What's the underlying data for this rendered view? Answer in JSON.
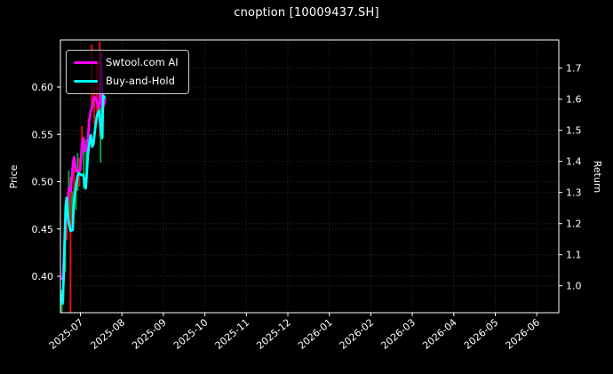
{
  "title": "cnoption [10009437.SH]",
  "axes": {
    "left_label": "Price",
    "right_label": "Return",
    "price_ticks": [
      0.4,
      0.45,
      0.5,
      0.55,
      0.6
    ],
    "return_ticks": [
      1.0,
      1.1,
      1.2,
      1.3,
      1.4,
      1.5,
      1.6,
      1.7
    ],
    "x_tick_labels": [
      "2025-07",
      "2025-08",
      "2025-09",
      "2025-10",
      "2025-11",
      "2025-12",
      "2026-01",
      "2026-02",
      "2026-03",
      "2026-04",
      "2026-05",
      "2026-06"
    ]
  },
  "legend": {
    "items": [
      {
        "label": "Swtool.com AI",
        "color": "#ff00ff"
      },
      {
        "label": "Buy-and-Hold",
        "color": "#00ffff"
      }
    ]
  },
  "colors": {
    "background": "#000000",
    "text": "#ffffff",
    "grid": "#2f2f2f",
    "spine": "#ffffff",
    "candle_red": "#e01010",
    "candle_green": "#00a33c"
  },
  "chart_data": {
    "type": "line",
    "title": "cnoption [10009437.SH]",
    "grid": "dotted",
    "legend_position": "upper left",
    "x_axis": {
      "kind": "time",
      "start_date": "2025-06-16",
      "point_x_unit": "days since start_date",
      "tick_labels": [
        "2025-07",
        "2025-08",
        "2025-09",
        "2025-10",
        "2025-11",
        "2025-12",
        "2026-01",
        "2026-02",
        "2026-03",
        "2026-04",
        "2026-05",
        "2026-06"
      ]
    },
    "price_axis": {
      "label": "Price",
      "side": "left",
      "ticks": [
        0.4,
        0.45,
        0.5,
        0.55,
        0.6
      ],
      "range": [
        0.361,
        0.65
      ]
    },
    "return_axis": {
      "label": "Return",
      "side": "right",
      "ticks": [
        1.0,
        1.1,
        1.2,
        1.3,
        1.4,
        1.5,
        1.6,
        1.7
      ],
      "range": [
        0.913,
        1.79
      ]
    },
    "series": [
      {
        "name": "Swtool.com AI",
        "color": "#ff00ff",
        "scale": "price",
        "points": [
          [
            0,
            0.398
          ],
          [
            1.9,
            0.397
          ],
          [
            2.6,
            0.41
          ],
          [
            3.9,
            0.452
          ],
          [
            5.2,
            0.47
          ],
          [
            6.5,
            0.493
          ],
          [
            7.8,
            0.49
          ],
          [
            9.7,
            0.521
          ],
          [
            10.4,
            0.526
          ],
          [
            11.8,
            0.511
          ],
          [
            13.6,
            0.512
          ],
          [
            14.9,
            0.512
          ],
          [
            16.2,
            0.54
          ],
          [
            17.3,
            0.546
          ],
          [
            18.3,
            0.532
          ],
          [
            20.0,
            0.534
          ],
          [
            21.5,
            0.565
          ],
          [
            22.6,
            0.575
          ],
          [
            23.9,
            0.58
          ],
          [
            24.9,
            0.589
          ],
          [
            25.9,
            0.589
          ],
          [
            27.2,
            0.585
          ],
          [
            28.1,
            0.578
          ],
          [
            29.1,
            0.584
          ],
          [
            30.1,
            0.636
          ],
          [
            31.0,
            0.576
          ],
          [
            32.0,
            0.58
          ],
          [
            33.0,
            0.587
          ]
        ]
      },
      {
        "name": "Buy-and-Hold",
        "color": "#00ffff",
        "scale": "price",
        "points": [
          [
            0,
            0.382
          ],
          [
            1.3,
            0.376
          ],
          [
            1.9,
            0.371
          ],
          [
            2.9,
            0.405
          ],
          [
            3.6,
            0.445
          ],
          [
            4.2,
            0.473
          ],
          [
            4.9,
            0.483
          ],
          [
            5.8,
            0.462
          ],
          [
            6.8,
            0.455
          ],
          [
            7.8,
            0.448
          ],
          [
            9.4,
            0.449
          ],
          [
            10.0,
            0.474
          ],
          [
            10.8,
            0.485
          ],
          [
            12.0,
            0.497
          ],
          [
            12.9,
            0.506
          ],
          [
            14.0,
            0.509
          ],
          [
            15.5,
            0.507
          ],
          [
            17.3,
            0.507
          ],
          [
            18.3,
            0.495
          ],
          [
            19.0,
            0.493
          ],
          [
            20.5,
            0.528
          ],
          [
            21.5,
            0.54
          ],
          [
            22.6,
            0.549
          ],
          [
            23.7,
            0.537
          ],
          [
            24.6,
            0.54
          ],
          [
            25.9,
            0.557
          ],
          [
            27.2,
            0.57
          ],
          [
            28.5,
            0.575
          ],
          [
            29.4,
            0.565
          ],
          [
            30.7,
            0.546
          ],
          [
            31.7,
            0.591
          ],
          [
            32.7,
            0.589
          ]
        ]
      }
    ],
    "candlesticks": [
      [
        0,
        "red",
        0.371,
        0.4
      ],
      [
        1.3,
        "green",
        0.36,
        0.386
      ],
      [
        2.6,
        "green",
        0.375,
        0.42
      ],
      [
        3.9,
        "green",
        0.405,
        0.46
      ],
      [
        5.2,
        "red",
        0.438,
        0.48
      ],
      [
        6.5,
        "green",
        0.458,
        0.512
      ],
      [
        7.8,
        "red",
        0.362,
        0.505
      ],
      [
        9.1,
        "green",
        0.452,
        0.49
      ],
      [
        10.4,
        "red",
        0.485,
        0.521
      ],
      [
        11.7,
        "green",
        0.47,
        0.5
      ],
      [
        13.0,
        "green",
        0.49,
        0.53
      ],
      [
        14.3,
        "red",
        0.495,
        0.525
      ],
      [
        16.2,
        "red",
        0.531,
        0.559
      ],
      [
        17.5,
        "green",
        0.493,
        0.54
      ],
      [
        19.4,
        "green",
        0.5,
        0.545
      ],
      [
        21.0,
        "red",
        0.528,
        0.566
      ],
      [
        23.3,
        "red",
        0.575,
        0.645
      ],
      [
        25.2,
        "red",
        0.56,
        0.6
      ],
      [
        27.2,
        "red",
        0.57,
        0.625
      ],
      [
        29.1,
        "red",
        0.548,
        0.648
      ],
      [
        29.8,
        "green",
        0.52,
        0.578
      ],
      [
        31.7,
        "green",
        0.546,
        0.592
      ]
    ]
  }
}
